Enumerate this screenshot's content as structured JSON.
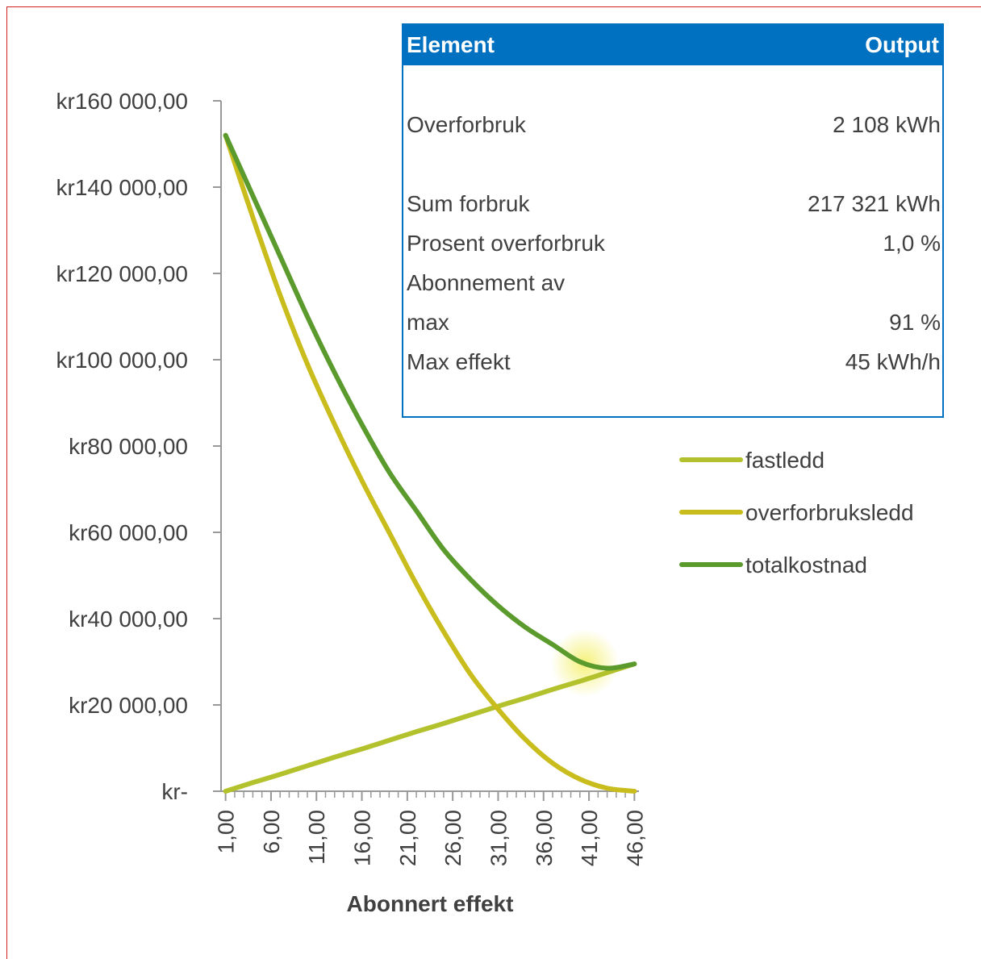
{
  "chart_data": {
    "type": "line",
    "x_label": "Abonnert effekt",
    "x": [
      1,
      4,
      7,
      10,
      13,
      16,
      19,
      22,
      25,
      28,
      31,
      34,
      37,
      40,
      43,
      46
    ],
    "series": [
      {
        "name": "fastledd",
        "color": "#b3c12c",
        "values": [
          0,
          2000,
          3900,
          5900,
          7900,
          9800,
          11800,
          13800,
          15700,
          17700,
          19700,
          21600,
          23600,
          25500,
          27500,
          29500
        ]
      },
      {
        "name": "overforbruksledd",
        "color": "#c9bd1e",
        "values": [
          152000,
          133000,
          115000,
          99000,
          85000,
          72000,
          60000,
          48000,
          37000,
          27000,
          19000,
          12000,
          6500,
          2800,
          700,
          0
        ]
      },
      {
        "name": "totalkostnad",
        "color": "#5b9a2c",
        "values": [
          152000,
          138000,
          124000,
          110000,
          97000,
          85000,
          74000,
          65000,
          56000,
          49000,
          43000,
          38000,
          34000,
          30000,
          28500,
          29500
        ]
      }
    ],
    "xlim": [
      0.5,
      46.5
    ],
    "xticks": [
      {
        "value": 1,
        "label": "1,00"
      },
      {
        "value": 6,
        "label": "6,00"
      },
      {
        "value": 11,
        "label": "11,00"
      },
      {
        "value": 16,
        "label": "16,00"
      },
      {
        "value": 21,
        "label": "21,00"
      },
      {
        "value": 26,
        "label": "26,00"
      },
      {
        "value": 31,
        "label": "31,00"
      },
      {
        "value": 36,
        "label": "36,00"
      },
      {
        "value": 41,
        "label": "41,00"
      },
      {
        "value": 46,
        "label": "46,00"
      }
    ],
    "ylim": [
      0,
      160000
    ],
    "yticks": [
      {
        "value": 0,
        "label": "kr-"
      },
      {
        "value": 20000,
        "label": "kr20 000,00"
      },
      {
        "value": 40000,
        "label": "kr40 000,00"
      },
      {
        "value": 60000,
        "label": "kr60 000,00"
      },
      {
        "value": 80000,
        "label": "kr80 000,00"
      },
      {
        "value": 100000,
        "label": "kr100 000,00"
      },
      {
        "value": 120000,
        "label": "kr120 000,00"
      },
      {
        "value": 140000,
        "label": "kr140 000,00"
      },
      {
        "value": 160000,
        "label": "kr160 000,00"
      }
    ],
    "legend": "right"
  },
  "table": {
    "header": [
      "Element",
      "Output"
    ],
    "rows": [
      [
        "Overforbruk",
        "2 108 kWh"
      ],
      [
        "Sum forbruk",
        "217 321 kWh"
      ],
      [
        "Prosent overforbruk",
        "1,0 %"
      ],
      [
        "Abonnement av max",
        "91 %"
      ],
      [
        "Max effekt",
        "45 kWh/h"
      ]
    ]
  }
}
